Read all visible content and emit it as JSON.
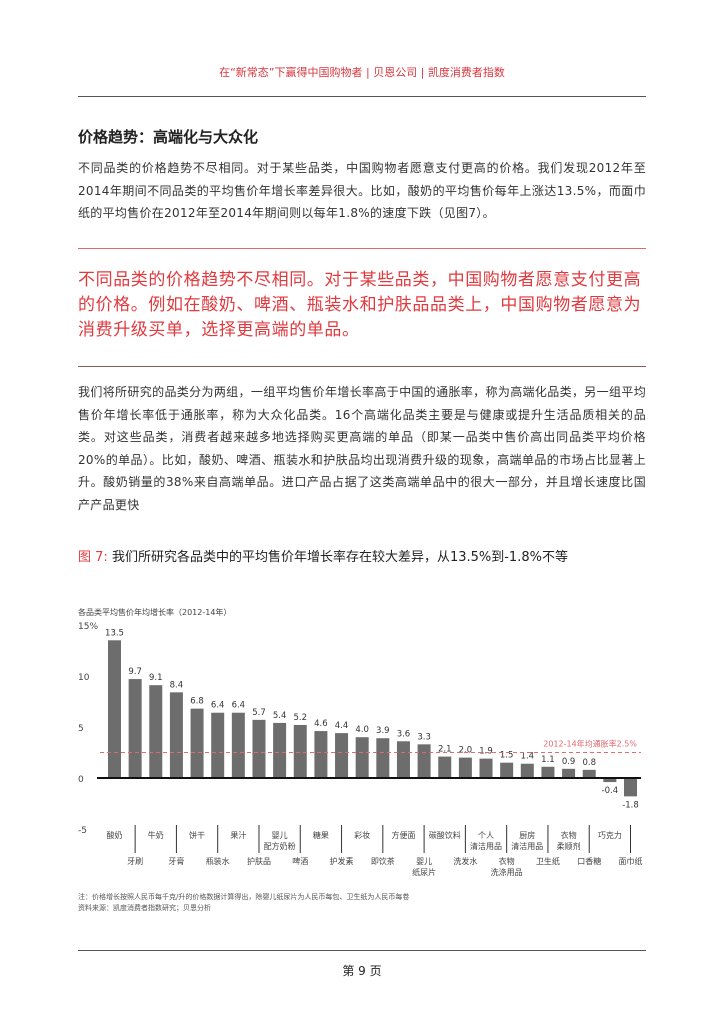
{
  "header": {
    "title": "在“新常态”下赢得中国购物者 | 贝恩公司 | 凯度消费者指数"
  },
  "section": {
    "heading": "价格趋势：高端化与大众化",
    "para1": "不同品类的价格趋势不尽相同。对于某些品类，中国购物者愿意支付更高的价格。我们发现2012年至2014年期间不同品类的平均售价年增长率差异很大。比如，酸奶的平均售价每年上涨达13.5%，而面巾纸的平均售价在2012年至2014年期间则以每年1.8%的速度下跌（见图7）。",
    "quote": "不同品类的价格趋势不尽相同。对于某些品类，中国购物者愿意支付更高的价格。例如在酸奶、啤酒、瓶装水和护肤品品类上，中国购物者愿意为消费升级买单，选择更高端的单品。",
    "para2": "我们将所研究的品类分为两组，一组平均售价年增长率高于中国的通胀率，称为高端化品类，另一组平均售价年增长率低于通胀率，称为大众化品类。16个高端化品类主要是与健康或提升生活品质相关的品类。对这些品类，消费者越来越多地选择购买更高端的单品（即某一品类中售价高出同品类平均价格20%的单品）。比如，酸奶、啤酒、瓶装水和护肤品均出现消费升级的现象，高端单品的市场占比显著上升。酸奶销量的38%来自高端单品。进口产品占据了这类高端单品中的很大一部分，并且增长速度比国产产品更快"
  },
  "figure": {
    "number": "图 7:",
    "title": "我们所研究各品类中的平均售价年增长率存在较大差异，从13.5%到-1.8%不等",
    "note": "注：价格增长按照人民币每千克/升的价格数据计算得出，除婴儿纸尿片为人民币每包、卫生纸为人民币每卷",
    "source": "资料来源：凯度消费者指数研究；贝恩分析"
  },
  "chart_data": {
    "type": "bar",
    "ylabel": "各品类平均售价年均增长率（2012-14年）",
    "ylim": [
      -5,
      15
    ],
    "yticks": [
      "15%",
      "10",
      "5",
      "0",
      "-5"
    ],
    "ytick_values": [
      15,
      10,
      5,
      0,
      -5
    ],
    "grid": false,
    "categories": [
      "酸奶",
      "牙刷",
      "牛奶",
      "牙膏",
      "饼干",
      "瓶装水",
      "果汁",
      "护肤品",
      "婴儿配方奶粉",
      "啤酒",
      "糖果",
      "护发素",
      "彩妆",
      "即饮茶",
      "方便面",
      "婴儿纸尿片",
      "碳酸饮料",
      "洗发水",
      "个人清洁用品",
      "衣物洗涤用品",
      "厨房清洁用品",
      "卫生纸",
      "衣物柔顺剂",
      "口香糖",
      "巧克力",
      "面巾纸"
    ],
    "category_lines": [
      [
        "酸奶"
      ],
      [
        "牙刷"
      ],
      [
        "牛奶"
      ],
      [
        "牙膏"
      ],
      [
        "饼干"
      ],
      [
        "瓶装水"
      ],
      [
        "果汁"
      ],
      [
        "护肤品"
      ],
      [
        "婴儿",
        "配方奶粉"
      ],
      [
        "啤酒"
      ],
      [
        "糖果"
      ],
      [
        "护发素"
      ],
      [
        "彩妆"
      ],
      [
        "即饮茶"
      ],
      [
        "方便面"
      ],
      [
        "婴儿",
        "纸尿片"
      ],
      [
        "碳酸饮料"
      ],
      [
        "洗发水"
      ],
      [
        "个人",
        "清洁用品"
      ],
      [
        "衣物",
        "洗涤用品"
      ],
      [
        "厨房",
        "清洁用品"
      ],
      [
        "卫生纸"
      ],
      [
        "衣物",
        "柔顺剂"
      ],
      [
        "口香糖"
      ],
      [
        "巧克力"
      ],
      [
        "面巾纸"
      ]
    ],
    "values": [
      13.5,
      9.7,
      9.1,
      8.4,
      6.8,
      6.4,
      6.4,
      5.7,
      5.4,
      5.2,
      4.6,
      4.4,
      4.0,
      3.9,
      3.6,
      3.3,
      2.1,
      2.0,
      1.9,
      1.5,
      1.4,
      1.1,
      0.9,
      0.8,
      -0.4,
      -1.8
    ],
    "value_labels": [
      "13.5",
      "9.7",
      "9.1",
      "8.4",
      "6.8",
      "6.4",
      "6.4",
      "5.7",
      "5.4",
      "5.2",
      "4.6",
      "4.4",
      "4.0",
      "3.9",
      "3.6",
      "3.3",
      "2.1",
      "2.0",
      "1.9",
      "1.5",
      "1.4",
      "1.1",
      "0.9",
      "0.8",
      "-0.4",
      "-1.8"
    ],
    "reference_line": {
      "value": 2.5,
      "label": "2012-14年均通胀率2.5%",
      "color": "#e06a6f"
    },
    "bar_color": "#6d6d6d"
  },
  "footer": {
    "page": "第 9 页"
  }
}
